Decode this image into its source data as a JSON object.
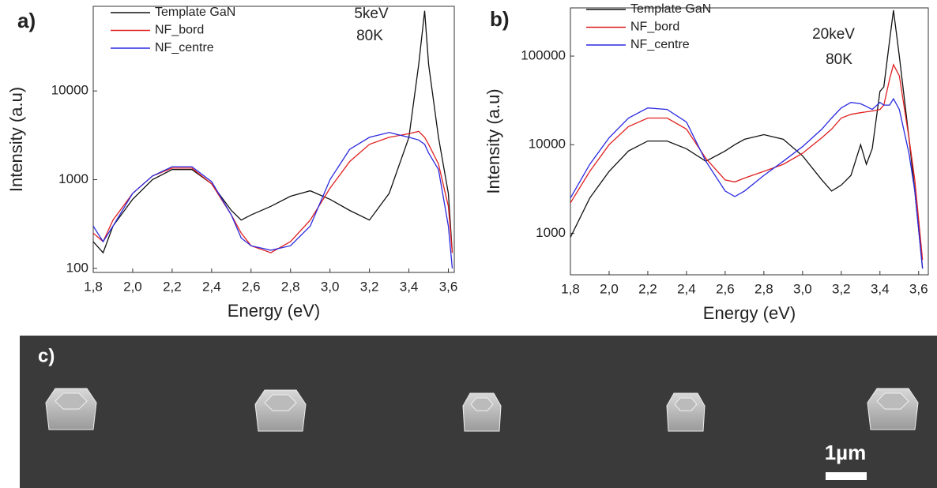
{
  "chart_data": [
    {
      "type": "line",
      "panel_label": "a)",
      "xlabel": "Energy (eV)",
      "ylabel": "Intensity (a.u)",
      "annotations": [
        "5keV",
        "80K"
      ],
      "log_y": true,
      "xlim": [
        1.8,
        3.63
      ],
      "ylim": [
        90,
        90000
      ],
      "xticks": [
        {
          "value": 1.8,
          "label": "1,8"
        },
        {
          "value": 2.0,
          "label": "2,0"
        },
        {
          "value": 2.2,
          "label": "2,2"
        },
        {
          "value": 2.4,
          "label": "2,4"
        },
        {
          "value": 2.6,
          "label": "2,6"
        },
        {
          "value": 2.8,
          "label": "2,8"
        },
        {
          "value": 3.0,
          "label": "3,0"
        },
        {
          "value": 3.2,
          "label": "3,2"
        },
        {
          "value": 3.4,
          "label": "3,4"
        },
        {
          "value": 3.6,
          "label": "3,6"
        }
      ],
      "yticks": [
        100,
        1000,
        10000
      ],
      "x": [
        1.8,
        1.85,
        1.9,
        2.0,
        2.1,
        2.2,
        2.3,
        2.4,
        2.5,
        2.55,
        2.6,
        2.7,
        2.8,
        2.9,
        3.0,
        3.1,
        3.2,
        3.3,
        3.4,
        3.45,
        3.48,
        3.5,
        3.55,
        3.6,
        3.62
      ],
      "series": [
        {
          "name": "Template GaN",
          "color": "#111111",
          "values": [
            200,
            150,
            300,
            600,
            1000,
            1300,
            1300,
            900,
            450,
            350,
            400,
            500,
            650,
            750,
            600,
            450,
            350,
            700,
            3000,
            20000,
            80000,
            20000,
            3000,
            700,
            150
          ]
        },
        {
          "name": "NF_bord",
          "color": "#e02020",
          "values": [
            250,
            200,
            350,
            700,
            1100,
            1350,
            1350,
            900,
            400,
            250,
            180,
            150,
            200,
            350,
            800,
            1600,
            2500,
            3000,
            3300,
            3500,
            3000,
            2500,
            1500,
            500,
            150
          ]
        },
        {
          "name": "NF_centre",
          "color": "#2a2ae0",
          "values": [
            300,
            200,
            300,
            700,
            1100,
            1400,
            1400,
            950,
            400,
            220,
            180,
            160,
            180,
            300,
            1000,
            2200,
            3000,
            3400,
            3000,
            2800,
            2500,
            2000,
            1300,
            300,
            100
          ]
        }
      ]
    },
    {
      "type": "line",
      "panel_label": "b)",
      "xlabel": "Energy (eV)",
      "ylabel": "Intensity (a.u)",
      "annotations": [
        "20keV",
        "80K"
      ],
      "log_y": true,
      "xlim": [
        1.8,
        3.65
      ],
      "ylim": [
        340,
        350000
      ],
      "xticks": [
        {
          "value": 1.8,
          "label": "1,8"
        },
        {
          "value": 2.0,
          "label": "2,0"
        },
        {
          "value": 2.2,
          "label": "2,2"
        },
        {
          "value": 2.4,
          "label": "2,4"
        },
        {
          "value": 2.6,
          "label": "2,6"
        },
        {
          "value": 2.8,
          "label": "2,8"
        },
        {
          "value": 3.0,
          "label": "3,0"
        },
        {
          "value": 3.2,
          "label": "3,2"
        },
        {
          "value": 3.4,
          "label": "3,4"
        },
        {
          "value": 3.6,
          "label": "3,6"
        }
      ],
      "yticks": [
        1000,
        10000,
        100000
      ],
      "x": [
        1.8,
        1.9,
        2.0,
        2.1,
        2.2,
        2.3,
        2.4,
        2.5,
        2.6,
        2.65,
        2.7,
        2.8,
        2.9,
        3.0,
        3.1,
        3.15,
        3.2,
        3.25,
        3.3,
        3.33,
        3.36,
        3.4,
        3.42,
        3.45,
        3.47,
        3.5,
        3.55,
        3.58,
        3.62
      ],
      "series": [
        {
          "name": "Template GaN",
          "color": "#111111",
          "values": [
            900,
            2500,
            5000,
            8500,
            11000,
            11000,
            9000,
            6500,
            8500,
            10000,
            11500,
            13000,
            11500,
            7500,
            4000,
            3000,
            3500,
            4500,
            10000,
            6000,
            9000,
            40000,
            45000,
            150000,
            330000,
            100000,
            12000,
            3000,
            400
          ]
        },
        {
          "name": "NF_bord",
          "color": "#e02020",
          "values": [
            2200,
            5000,
            10000,
            16000,
            20000,
            20000,
            15000,
            7000,
            4000,
            3800,
            4200,
            5000,
            6000,
            8000,
            12000,
            15000,
            20000,
            22000,
            23000,
            23500,
            24000,
            25000,
            28000,
            55000,
            80000,
            60000,
            12000,
            4000,
            500
          ]
        },
        {
          "name": "NF_centre",
          "color": "#2a2ae0",
          "values": [
            2500,
            6000,
            12000,
            20000,
            26000,
            25000,
            18000,
            6500,
            3000,
            2600,
            3000,
            4500,
            6500,
            9500,
            15000,
            20000,
            26000,
            30000,
            29000,
            27000,
            25000,
            30000,
            28000,
            28000,
            33000,
            25000,
            8000,
            3000,
            400
          ]
        }
      ]
    }
  ],
  "panel_c": {
    "label": "c)",
    "scale_bar": "1µm"
  }
}
